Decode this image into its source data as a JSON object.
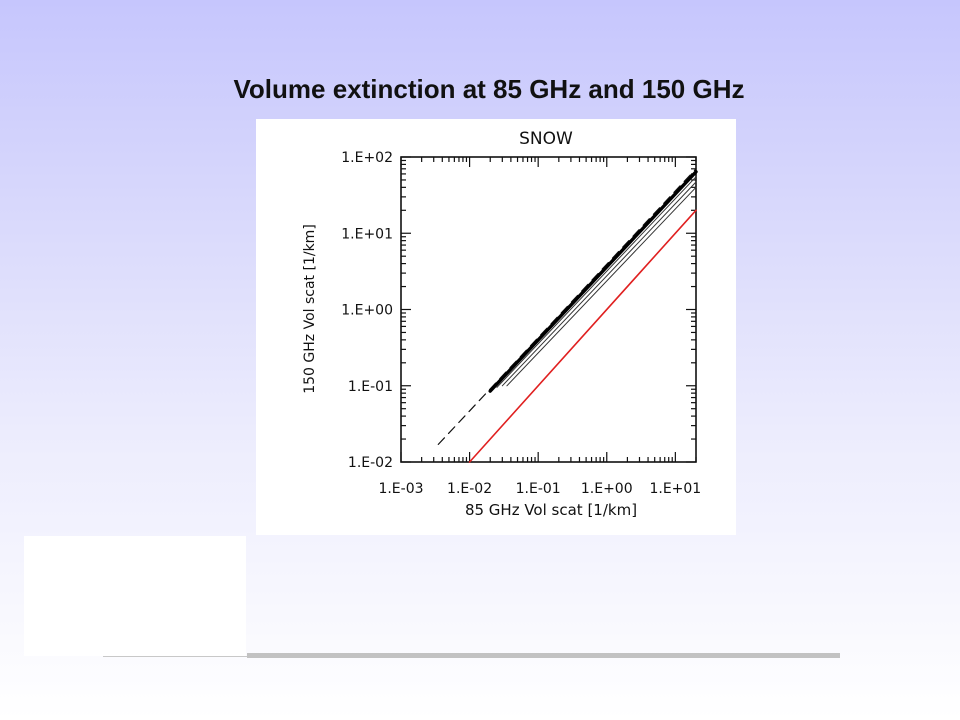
{
  "slide": {
    "title": "Volume extinction at 85 GHz and 150 GHz"
  },
  "chart_data": {
    "type": "line",
    "title": "SNOW",
    "xlabel": "85 GHz Vol scat [1/km]",
    "ylabel": "150 GHz Vol scat [1/km]",
    "x_scale": "log",
    "y_scale": "log",
    "xlim": [
      0.001,
      20
    ],
    "ylim": [
      0.01,
      100
    ],
    "x_ticks": [
      0.001,
      0.01,
      0.1,
      1,
      10
    ],
    "x_tick_labels": [
      "1.E-03",
      "1.E-02",
      "1.E-01",
      "1.E+00",
      "1.E+01"
    ],
    "y_ticks": [
      0.01,
      0.1,
      1,
      10,
      100
    ],
    "y_tick_labels": [
      "1.E-02",
      "1.E-01",
      "1.E+00",
      "1.E+01",
      "1.E+02"
    ],
    "grid": false,
    "legend": "none",
    "series": [
      {
        "style": "dashed",
        "color": "#111111",
        "width": 1.2,
        "x": [
          0.0035,
          20
        ],
        "y": [
          0.017,
          70
        ]
      },
      {
        "style": "thick",
        "color": "#000000",
        "width": 3.4,
        "x": [
          0.02,
          20
        ],
        "y": [
          0.085,
          64
        ]
      },
      {
        "style": "thin",
        "color": "#333333",
        "width": 1,
        "x": [
          0.025,
          20
        ],
        "y": [
          0.095,
          55
        ]
      },
      {
        "style": "thin",
        "color": "#333333",
        "width": 1,
        "x": [
          0.03,
          20
        ],
        "y": [
          0.1,
          47
        ]
      },
      {
        "style": "thin",
        "color": "#333333",
        "width": 1,
        "x": [
          0.035,
          20
        ],
        "y": [
          0.1,
          40
        ]
      },
      {
        "style": "red",
        "color": "#e02020",
        "width": 1.6,
        "x": [
          0.01,
          20
        ],
        "y": [
          0.01,
          20
        ]
      }
    ]
  }
}
